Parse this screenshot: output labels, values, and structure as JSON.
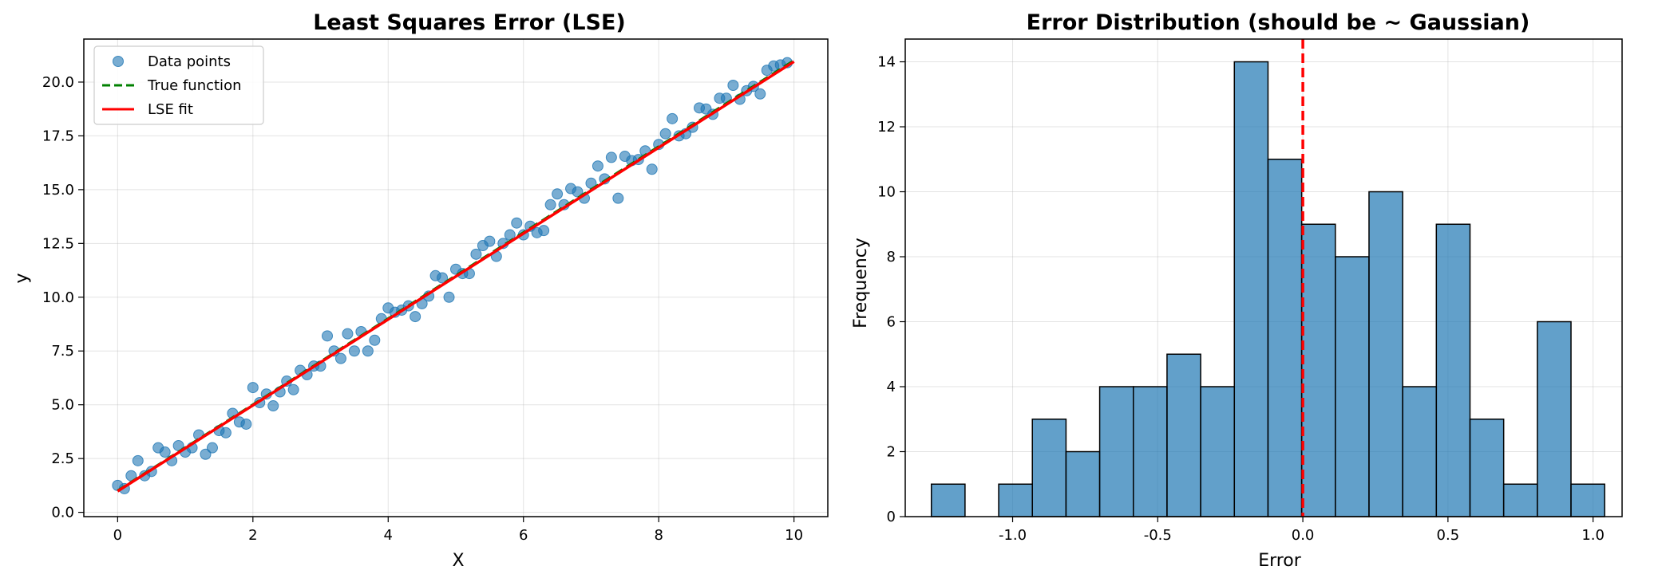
{
  "chart_data": [
    {
      "type": "scatter",
      "title": "Least Squares Error (LSE)",
      "xlabel": "X",
      "ylabel": "y",
      "xlim": [
        -0.5,
        10.5
      ],
      "ylim": [
        -0.2,
        22.0
      ],
      "xticks": [
        0,
        2,
        4,
        6,
        8,
        10
      ],
      "xtick_labels": [
        "0",
        "2",
        "4",
        "6",
        "8",
        "10"
      ],
      "yticks": [
        0.0,
        2.5,
        5.0,
        7.5,
        10.0,
        12.5,
        15.0,
        17.5,
        20.0
      ],
      "ytick_labels": [
        "0.0",
        "2.5",
        "5.0",
        "7.5",
        "10.0",
        "12.5",
        "15.0",
        "17.5",
        "20.0"
      ],
      "grid": true,
      "legend_position": "top-left",
      "legend": {
        "data_points": "Data points",
        "true_function": "True function",
        "lse_fit": "LSE fit"
      },
      "series": [
        {
          "name": "Data points",
          "kind": "scatter",
          "color": "#1f77b4",
          "points": [
            [
              0.0,
              1.25
            ],
            [
              0.1,
              1.1
            ],
            [
              0.2,
              1.7
            ],
            [
              0.3,
              2.4
            ],
            [
              0.4,
              1.7
            ],
            [
              0.5,
              1.9
            ],
            [
              0.6,
              3.0
            ],
            [
              0.7,
              2.8
            ],
            [
              0.8,
              2.4
            ],
            [
              0.9,
              3.1
            ],
            [
              1.0,
              2.8
            ],
            [
              1.1,
              3.0
            ],
            [
              1.2,
              3.6
            ],
            [
              1.3,
              2.7
            ],
            [
              1.4,
              3.0
            ],
            [
              1.5,
              3.8
            ],
            [
              1.6,
              3.7
            ],
            [
              1.7,
              4.6
            ],
            [
              1.8,
              4.2
            ],
            [
              1.9,
              4.1
            ],
            [
              2.0,
              5.8
            ],
            [
              2.1,
              5.1
            ],
            [
              2.2,
              5.5
            ],
            [
              2.3,
              4.95
            ],
            [
              2.4,
              5.6
            ],
            [
              2.5,
              6.1
            ],
            [
              2.6,
              5.7
            ],
            [
              2.7,
              6.6
            ],
            [
              2.8,
              6.4
            ],
            [
              2.9,
              6.8
            ],
            [
              3.0,
              6.8
            ],
            [
              3.1,
              8.2
            ],
            [
              3.2,
              7.5
            ],
            [
              3.3,
              7.15
            ],
            [
              3.4,
              8.3
            ],
            [
              3.5,
              7.5
            ],
            [
              3.6,
              8.4
            ],
            [
              3.7,
              7.5
            ],
            [
              3.8,
              8.0
            ],
            [
              3.9,
              9.0
            ],
            [
              4.0,
              9.5
            ],
            [
              4.1,
              9.3
            ],
            [
              4.2,
              9.4
            ],
            [
              4.3,
              9.6
            ],
            [
              4.4,
              9.1
            ],
            [
              4.5,
              9.7
            ],
            [
              4.6,
              10.05
            ],
            [
              4.7,
              11.0
            ],
            [
              4.8,
              10.9
            ],
            [
              4.9,
              10.0
            ],
            [
              5.0,
              11.3
            ],
            [
              5.1,
              11.1
            ],
            [
              5.2,
              11.1
            ],
            [
              5.3,
              12.0
            ],
            [
              5.4,
              12.4
            ],
            [
              5.5,
              12.6
            ],
            [
              5.6,
              11.9
            ],
            [
              5.7,
              12.5
            ],
            [
              5.8,
              12.9
            ],
            [
              5.9,
              13.45
            ],
            [
              6.0,
              12.9
            ],
            [
              6.1,
              13.3
            ],
            [
              6.2,
              13.0
            ],
            [
              6.3,
              13.1
            ],
            [
              6.4,
              14.3
            ],
            [
              6.5,
              14.8
            ],
            [
              6.6,
              14.3
            ],
            [
              6.7,
              15.05
            ],
            [
              6.8,
              14.9
            ],
            [
              6.9,
              14.6
            ],
            [
              7.0,
              15.3
            ],
            [
              7.1,
              16.1
            ],
            [
              7.2,
              15.5
            ],
            [
              7.3,
              16.5
            ],
            [
              7.4,
              14.6
            ],
            [
              7.5,
              16.55
            ],
            [
              7.6,
              16.35
            ],
            [
              7.7,
              16.4
            ],
            [
              7.8,
              16.8
            ],
            [
              7.9,
              15.95
            ],
            [
              8.0,
              17.1
            ],
            [
              8.1,
              17.6
            ],
            [
              8.2,
              18.3
            ],
            [
              8.3,
              17.5
            ],
            [
              8.4,
              17.6
            ],
            [
              8.5,
              17.9
            ],
            [
              8.6,
              18.8
            ],
            [
              8.7,
              18.75
            ],
            [
              8.8,
              18.5
            ],
            [
              8.9,
              19.25
            ],
            [
              9.0,
              19.25
            ],
            [
              9.1,
              19.85
            ],
            [
              9.2,
              19.2
            ],
            [
              9.3,
              19.6
            ],
            [
              9.4,
              19.8
            ],
            [
              9.5,
              19.45
            ],
            [
              9.6,
              20.55
            ],
            [
              9.7,
              20.75
            ],
            [
              9.8,
              20.8
            ],
            [
              9.9,
              20.9
            ]
          ]
        },
        {
          "name": "True function",
          "kind": "line",
          "color": "#008000",
          "dash": "dashed",
          "x": [
            0,
            10
          ],
          "y": [
            1.0,
            21.0
          ]
        },
        {
          "name": "LSE fit",
          "kind": "line",
          "color": "#ff0000",
          "dash": "solid",
          "x": [
            0,
            10
          ],
          "y": [
            0.98,
            20.95
          ]
        }
      ]
    },
    {
      "type": "bar",
      "title": "Error Distribution (should be ~ Gaussian)",
      "xlabel": "Error",
      "ylabel": "Frequency",
      "xlim": [
        -1.37,
        1.1
      ],
      "ylim": [
        0,
        14.7
      ],
      "xticks": [
        -1.0,
        -0.5,
        0.0,
        0.5,
        1.0
      ],
      "xtick_labels": [
        "-1.0",
        "-0.5",
        "0.0",
        "0.5",
        "1.0"
      ],
      "yticks": [
        0,
        2,
        4,
        6,
        8,
        10,
        12,
        14
      ],
      "ytick_labels": [
        "0",
        "2",
        "4",
        "6",
        "8",
        "10",
        "12",
        "14"
      ],
      "grid": true,
      "bar_color": "#1f77b4",
      "bar_edge_color": "#000000",
      "bin_edges": [
        -1.28,
        -1.164,
        -1.048,
        -0.932,
        -0.816,
        -0.7,
        -0.584,
        -0.468,
        -0.352,
        -0.236,
        -0.12,
        -0.004,
        0.112,
        0.228,
        0.344,
        0.46,
        0.576,
        0.692,
        0.808,
        0.924,
        1.04
      ],
      "values": [
        1,
        0,
        1,
        3,
        2,
        4,
        4,
        5,
        4,
        14,
        11,
        9,
        8,
        10,
        4,
        9,
        3,
        1,
        6,
        1
      ],
      "reference_line": {
        "x": 0.0,
        "color": "#ff0000",
        "dash": "dashed"
      }
    }
  ]
}
